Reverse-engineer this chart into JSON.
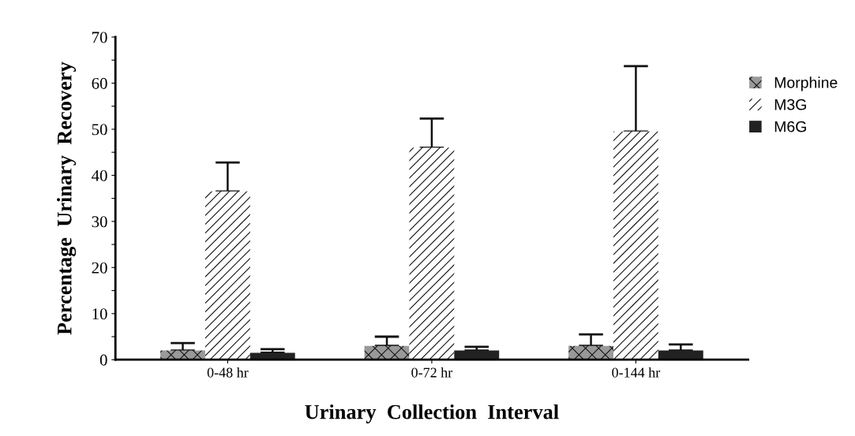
{
  "chart_data": {
    "type": "bar",
    "xlabel": "Urinary  Collection  Interval",
    "ylabel": "Percentage  Urinary  Recovery",
    "categories": [
      "0-48 hr",
      "0-72 hr",
      "0-144 hr"
    ],
    "series": [
      {
        "name": "Morphine",
        "color": "#999999",
        "values": [
          2,
          3,
          3
        ],
        "errors": [
          [
            2,
            3.6
          ],
          [
            3,
            5
          ],
          [
            3,
            5.5
          ]
        ]
      },
      {
        "name": "M3G",
        "color": "#ffffff",
        "values": [
          36.5,
          46,
          49.5
        ],
        "errors": [
          [
            36.5,
            42.8
          ],
          [
            46,
            52.3
          ],
          [
            49.5,
            63.7
          ]
        ]
      },
      {
        "name": "M6G",
        "color": "#222222",
        "values": [
          1.5,
          2,
          2
        ],
        "errors": [
          [
            1.5,
            2.3
          ],
          [
            2,
            2.8
          ],
          [
            2,
            3.3
          ]
        ]
      }
    ],
    "ylim": [
      0,
      70
    ],
    "yticks": [
      0,
      {
        "value": 5,
        "label": null
      },
      10,
      {
        "value": 15,
        "label": null
      },
      20,
      {
        "value": 25,
        "label": null
      },
      30,
      {
        "value": 35,
        "label": null
      },
      40,
      {
        "value": 45,
        "label": null
      },
      50,
      {
        "value": 55,
        "label": null
      },
      60,
      {
        "value": 65,
        "label": null
      },
      70
    ],
    "grid": false,
    "legend": "top right"
  }
}
